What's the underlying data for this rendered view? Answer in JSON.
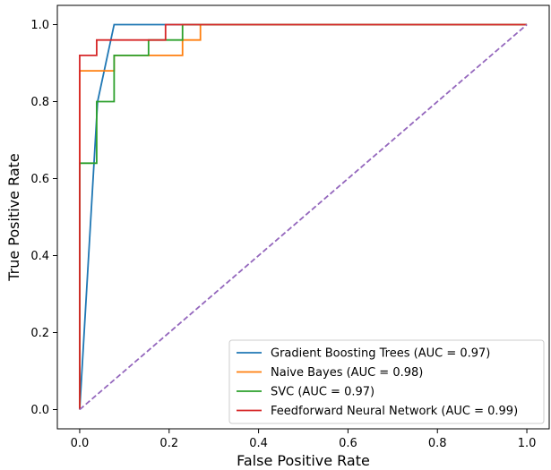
{
  "chart_data": {
    "type": "line",
    "xlabel": "False Positive Rate",
    "ylabel": "True Positive Rate",
    "xlim": [
      -0.05,
      1.05
    ],
    "ylim": [
      -0.05,
      1.05
    ],
    "xticks": [
      0.0,
      0.2,
      0.4,
      0.6,
      0.8,
      1.0
    ],
    "yticks": [
      0.0,
      0.2,
      0.4,
      0.6,
      0.8,
      1.0
    ],
    "xtick_labels": [
      "0.0",
      "0.2",
      "0.4",
      "0.6",
      "0.8",
      "1.0"
    ],
    "ytick_labels": [
      "0.0",
      "0.2",
      "0.4",
      "0.6",
      "0.8",
      "1.0"
    ],
    "grid": false,
    "legend_position": "lower-right",
    "series": [
      {
        "name": "Gradient Boosting Trees (AUC = 0.97)",
        "color": "#1f77b4",
        "style": "solid",
        "x": [
          0.0,
          0.04,
          0.077,
          1.0
        ],
        "y": [
          0.0,
          0.8,
          1.0,
          1.0
        ]
      },
      {
        "name": "Naive Bayes (AUC = 0.98)",
        "color": "#ff7f0e",
        "style": "solid",
        "x": [
          0.0,
          0.0,
          0.077,
          0.077,
          0.23,
          0.23,
          0.27,
          0.27,
          1.0
        ],
        "y": [
          0.0,
          0.88,
          0.88,
          0.92,
          0.92,
          0.96,
          0.96,
          1.0,
          1.0
        ]
      },
      {
        "name": "SVC (AUC = 0.97)",
        "color": "#2ca02c",
        "style": "solid",
        "x": [
          0.0,
          0.0,
          0.038,
          0.038,
          0.077,
          0.077,
          0.154,
          0.154,
          0.192,
          0.192,
          0.23,
          0.23,
          1.0
        ],
        "y": [
          0.0,
          0.64,
          0.64,
          0.8,
          0.8,
          0.92,
          0.92,
          0.96,
          0.96,
          0.96,
          0.96,
          1.0,
          1.0
        ]
      },
      {
        "name": "Feedforward Neural Network (AUC = 0.99)",
        "color": "#d62728",
        "style": "solid",
        "x": [
          0.0,
          0.0,
          0.038,
          0.038,
          0.192,
          0.192,
          1.0
        ],
        "y": [
          0.0,
          0.92,
          0.92,
          0.96,
          0.96,
          1.0,
          1.0
        ]
      },
      {
        "name": "",
        "color": "#9467bd",
        "style": "dashed",
        "x": [
          0.0,
          1.0
        ],
        "y": [
          0.0,
          1.0
        ]
      }
    ]
  }
}
